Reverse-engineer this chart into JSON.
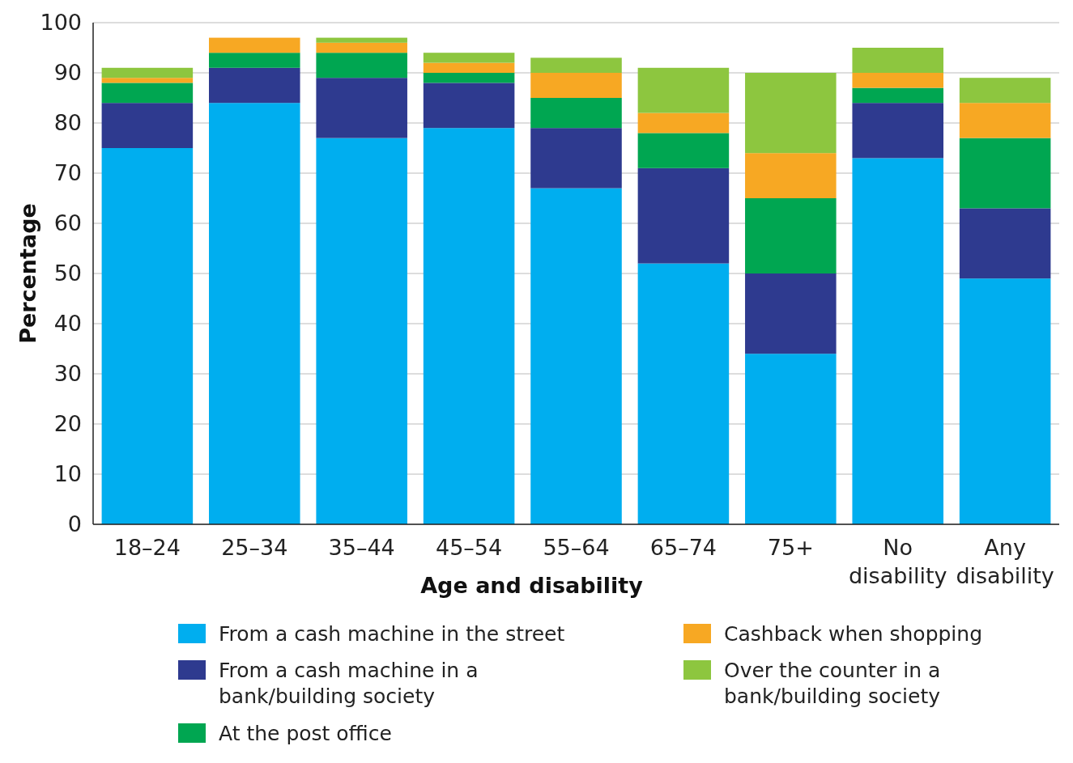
{
  "chart_data": {
    "type": "bar",
    "stacked": true,
    "xlabel": "Age and disability",
    "ylabel": "Percentage",
    "categories": [
      "18–24",
      "25–34",
      "35–44",
      "45–54",
      "55–64",
      "65–74",
      "75+",
      "No disability",
      "Any disability"
    ],
    "series": [
      {
        "name": "From a cash machine in the street",
        "color": "#00aeef",
        "values": [
          75,
          84,
          77,
          79,
          67,
          52,
          34,
          73,
          49
        ]
      },
      {
        "name": "From a cash machine in a bank/building society",
        "color": "#2e3a8f",
        "values": [
          9,
          7,
          12,
          9,
          12,
          19,
          16,
          11,
          14
        ]
      },
      {
        "name": "At the post office",
        "color": "#00a651",
        "values": [
          4,
          3,
          5,
          2,
          6,
          7,
          15,
          3,
          14
        ]
      },
      {
        "name": "Cashback when shopping",
        "color": "#f7a823",
        "values": [
          1,
          3,
          2,
          2,
          5,
          4,
          9,
          3,
          7
        ]
      },
      {
        "name": "Over the counter in a bank/building society",
        "color": "#8dc63f",
        "values": [
          2,
          0,
          1,
          2,
          3,
          9,
          16,
          5,
          5
        ]
      }
    ],
    "ylim": [
      0,
      100
    ],
    "yticks": [
      0,
      10,
      20,
      30,
      40,
      50,
      60,
      70,
      80,
      90,
      100
    ],
    "grid": "y",
    "legend": "bottom"
  }
}
